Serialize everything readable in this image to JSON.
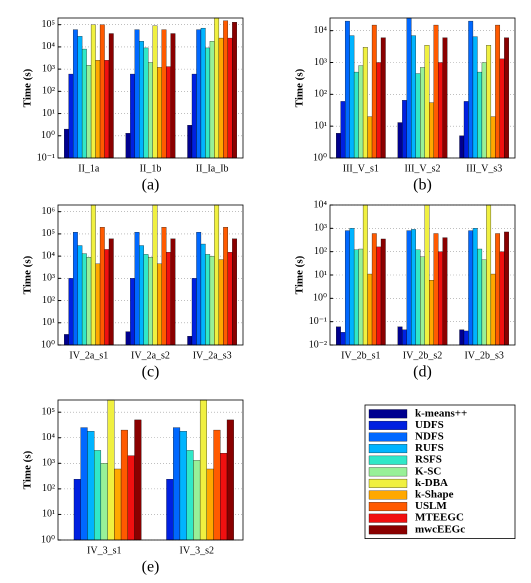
{
  "chart_data": [
    {
      "type": "bar",
      "log_scale": true,
      "grid": true,
      "ylabel": "Time (s)",
      "caption": "(a)",
      "categories": [
        "II_1a",
        "II_1b",
        "II_Ia_Ib"
      ],
      "ylim": [
        0.1,
        200000
      ],
      "yticks": [
        {
          "value": 0.1,
          "label": "10⁻¹"
        },
        {
          "value": 1,
          "label": "10⁰"
        },
        {
          "value": 10,
          "label": "10¹"
        },
        {
          "value": 100,
          "label": "10²"
        },
        {
          "value": 1000,
          "label": "10³"
        },
        {
          "value": 10000,
          "label": "10⁴"
        },
        {
          "value": 100000,
          "label": "10⁵"
        }
      ],
      "series": [
        {
          "values": [
            2,
            1.3,
            3
          ]
        },
        {
          "values": [
            600,
            600,
            600
          ]
        },
        {
          "values": [
            60000,
            60000,
            60000
          ]
        },
        {
          "values": [
            30000,
            18000,
            70000
          ]
        },
        {
          "values": [
            8000,
            9000,
            9000
          ]
        },
        {
          "values": [
            1500,
            2000,
            18000
          ]
        },
        {
          "values": [
            100000,
            90000,
            200000
          ]
        },
        {
          "values": [
            2500,
            1200,
            25000
          ]
        },
        {
          "values": [
            100000,
            60000,
            150000
          ]
        },
        {
          "values": [
            2500,
            1300,
            25000
          ]
        },
        {
          "values": [
            40000,
            40000,
            130000
          ]
        }
      ]
    },
    {
      "type": "bar",
      "log_scale": true,
      "grid": true,
      "ylabel": "Time (s)",
      "caption": "(b)",
      "categories": [
        "III_V_s1",
        "III_V_s2",
        "III_V_s3"
      ],
      "ylim": [
        1,
        25000
      ],
      "yticks": [
        {
          "value": 1,
          "label": "10⁰"
        },
        {
          "value": 10,
          "label": "10¹"
        },
        {
          "value": 100,
          "label": "10²"
        },
        {
          "value": 1000,
          "label": "10³"
        },
        {
          "value": 10000,
          "label": "10⁴"
        }
      ],
      "series": [
        {
          "values": [
            6,
            13,
            5
          ]
        },
        {
          "values": [
            60,
            65,
            60
          ]
        },
        {
          "values": [
            20000,
            25000,
            20000
          ]
        },
        {
          "values": [
            7000,
            7000,
            6500
          ]
        },
        {
          "values": [
            500,
            450,
            500
          ]
        },
        {
          "values": [
            800,
            700,
            1000
          ]
        },
        {
          "values": [
            3000,
            3500,
            3500
          ]
        },
        {
          "values": [
            20,
            55,
            20
          ]
        },
        {
          "values": [
            15000,
            15000,
            15000
          ]
        },
        {
          "values": [
            1000,
            1000,
            1300
          ]
        },
        {
          "values": [
            6000,
            6000,
            6000
          ]
        }
      ]
    },
    {
      "type": "bar",
      "log_scale": true,
      "grid": true,
      "ylabel": "Time (s)",
      "caption": "(c)",
      "categories": [
        "IV_2a_s1",
        "IV_2a_s2",
        "IV_2a_s3"
      ],
      "ylim": [
        1,
        2000000
      ],
      "yticks": [
        {
          "value": 1,
          "label": "10⁰"
        },
        {
          "value": 10,
          "label": "10¹"
        },
        {
          "value": 100,
          "label": "10²"
        },
        {
          "value": 1000,
          "label": "10³"
        },
        {
          "value": 10000,
          "label": "10⁴"
        },
        {
          "value": 100000,
          "label": "10⁵"
        },
        {
          "value": 1000000,
          "label": "10⁶"
        }
      ],
      "series": [
        {
          "values": [
            3,
            4,
            2.5
          ]
        },
        {
          "values": [
            1000,
            1000,
            1000
          ]
        },
        {
          "values": [
            120000,
            120000,
            120000
          ]
        },
        {
          "values": [
            30000,
            30000,
            35000
          ]
        },
        {
          "values": [
            13000,
            12000,
            12000
          ]
        },
        {
          "values": [
            9000,
            9000,
            10000
          ]
        },
        {
          "values": [
            2000000,
            2000000,
            2000000
          ]
        },
        {
          "values": [
            4500,
            4500,
            7000
          ]
        },
        {
          "values": [
            200000,
            200000,
            200000
          ]
        },
        {
          "values": [
            20000,
            15000,
            15000
          ]
        },
        {
          "values": [
            60000,
            60000,
            60000
          ]
        }
      ]
    },
    {
      "type": "bar",
      "log_scale": true,
      "grid": true,
      "ylabel": "Time (s)",
      "caption": "(d)",
      "categories": [
        "IV_2b_s1",
        "IV_2b_s2",
        "IV_2b_s3"
      ],
      "ylim": [
        0.01,
        10000
      ],
      "yticks": [
        {
          "value": 0.01,
          "label": "10⁻²"
        },
        {
          "value": 0.1,
          "label": "10⁻¹"
        },
        {
          "value": 1,
          "label": "10⁰"
        },
        {
          "value": 10,
          "label": "10¹"
        },
        {
          "value": 100,
          "label": "10²"
        },
        {
          "value": 1000,
          "label": "10³"
        },
        {
          "value": 10000,
          "label": "10⁴"
        }
      ],
      "series": [
        {
          "values": [
            0.06,
            0.06,
            0.045
          ]
        },
        {
          "values": [
            0.035,
            0.045,
            0.04
          ]
        },
        {
          "values": [
            800,
            800,
            800
          ]
        },
        {
          "values": [
            1000,
            900,
            1000
          ]
        },
        {
          "values": [
            120,
            120,
            130
          ]
        },
        {
          "values": [
            130,
            60,
            45
          ]
        },
        {
          "values": [
            10000,
            10000,
            10000
          ]
        },
        {
          "values": [
            11,
            6,
            11
          ]
        },
        {
          "values": [
            600,
            600,
            600
          ]
        },
        {
          "values": [
            160,
            100,
            100
          ]
        },
        {
          "values": [
            350,
            400,
            700
          ]
        }
      ]
    },
    {
      "type": "bar",
      "log_scale": true,
      "grid": true,
      "ylabel": "Time (s)",
      "caption": "(e)",
      "categories": [
        "IV_3_s1",
        "IV_3_s2"
      ],
      "ylim": [
        1,
        300000
      ],
      "yticks": [
        {
          "value": 1,
          "label": "10⁰"
        },
        {
          "value": 10,
          "label": "10¹"
        },
        {
          "value": 100,
          "label": "10²"
        },
        {
          "value": 1000,
          "label": "10³"
        },
        {
          "value": 10000,
          "label": "10⁴"
        },
        {
          "value": 100000,
          "label": "10⁵"
        }
      ],
      "series": [
        {
          "values": [
            null,
            null
          ]
        },
        {
          "values": [
            240,
            240
          ]
        },
        {
          "values": [
            25000,
            25000
          ]
        },
        {
          "values": [
            18000,
            18000
          ]
        },
        {
          "values": [
            3200,
            3200
          ]
        },
        {
          "values": [
            1000,
            1300
          ]
        },
        {
          "values": [
            300000,
            300000
          ]
        },
        {
          "values": [
            600,
            600
          ]
        },
        {
          "values": [
            20000,
            20000
          ]
        },
        {
          "values": [
            2000,
            2500
          ]
        },
        {
          "values": [
            50000,
            50000
          ]
        }
      ]
    }
  ],
  "legend": [
    {
      "name": "k-means++",
      "color": "#00008f"
    },
    {
      "name": "UDFS",
      "color": "#0020e0"
    },
    {
      "name": "NDFS",
      "color": "#0068ff"
    },
    {
      "name": "RUFS",
      "color": "#00b4ff"
    },
    {
      "name": "RSFS",
      "color": "#30e8c8"
    },
    {
      "name": "K-SC",
      "color": "#98f098"
    },
    {
      "name": "k-DBA",
      "color": "#f0f040"
    },
    {
      "name": "k-Shape",
      "color": "#ffa800"
    },
    {
      "name": "USLM",
      "color": "#ff5a00"
    },
    {
      "name": "MTEEGC",
      "color": "#f01010"
    },
    {
      "name": "mwcEEGc",
      "color": "#8a0000"
    }
  ]
}
